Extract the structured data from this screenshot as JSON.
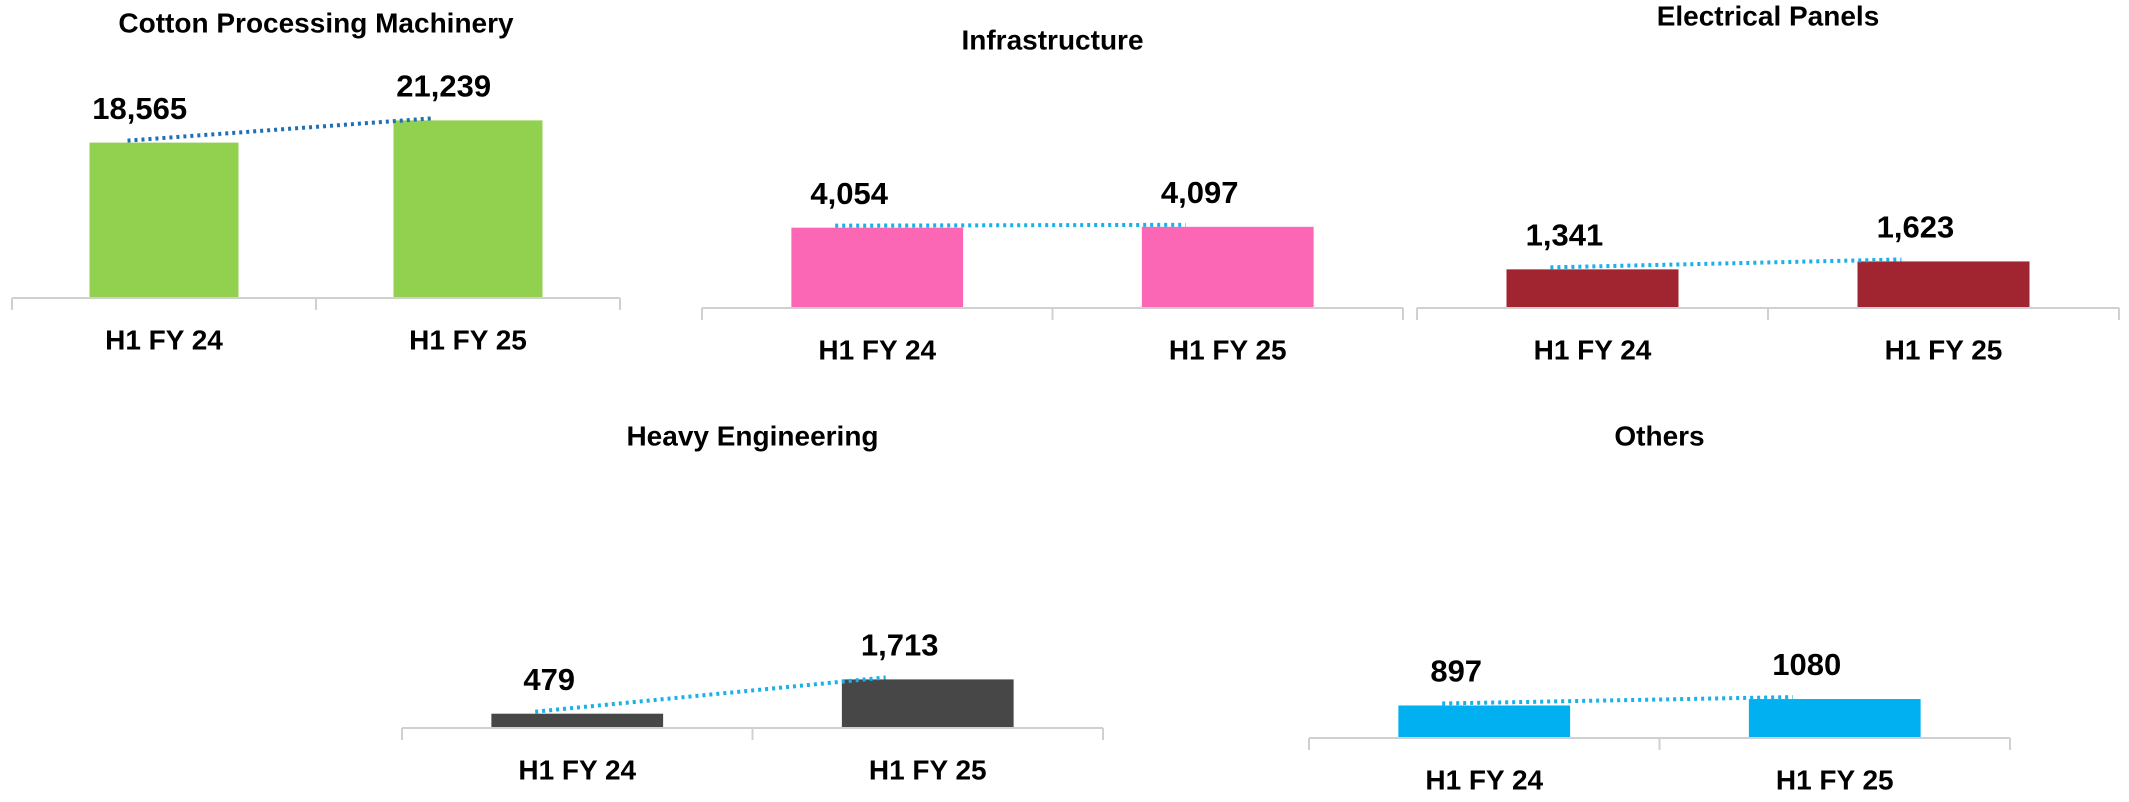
{
  "chart_data": [
    {
      "type": "bar",
      "title": "Cotton Processing Machinery",
      "categories": [
        "H1 FY 24",
        "H1 FY 25"
      ],
      "values": [
        18565,
        21239
      ],
      "value_labels": [
        "18,565",
        "21,239"
      ],
      "color": "#92d050",
      "trend_color": "#1f6fb5",
      "ylim": [
        0,
        28500
      ]
    },
    {
      "type": "bar",
      "title": "Infrastructure",
      "categories": [
        "H1 FY 24",
        "H1 FY 25"
      ],
      "values": [
        4054,
        4097
      ],
      "value_labels": [
        "4,054",
        "4,097"
      ],
      "color": "#fb67b5",
      "trend_color": "#1ab0e8",
      "ylim": [
        0,
        11600
      ]
    },
    {
      "type": "bar",
      "title": "Electrical Panels",
      "categories": [
        "H1 FY 24",
        "H1 FY 25"
      ],
      "values": [
        1341,
        1623
      ],
      "value_labels": [
        "1,341",
        "1,623"
      ],
      "color": "#a12530",
      "trend_color": "#1ab0e8",
      "ylim": [
        0,
        8800
      ]
    },
    {
      "type": "bar",
      "title": "Heavy Engineering",
      "categories": [
        "H1 FY 24",
        "H1 FY 25"
      ],
      "values": [
        479,
        1713
      ],
      "value_labels": [
        "479",
        "1,713"
      ],
      "color": "#474747",
      "trend_color": "#1ab0e8",
      "ylim": [
        0,
        9250
      ]
    },
    {
      "type": "bar",
      "title": "Others",
      "categories": [
        "H1 FY 24",
        "H1 FY 25"
      ],
      "values": [
        897,
        1080
      ],
      "color": "#00b0f0",
      "trend_color": "#1ab0e8",
      "ylim": [
        0,
        7600
      ]
    }
  ]
}
